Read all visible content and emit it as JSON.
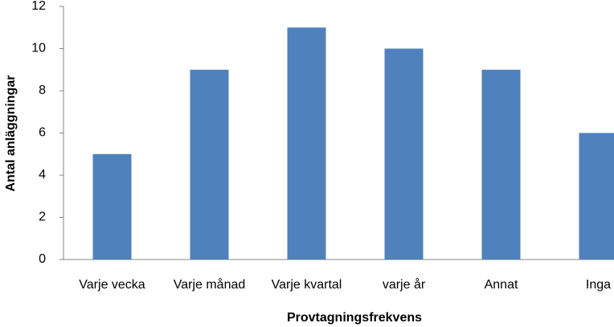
{
  "chart_data": {
    "type": "bar",
    "x_label": "Provtagningsfrekvens",
    "y_label": "Antal anläggningar",
    "categories": [
      "Varje vecka",
      "Varje månad",
      "Varje kvartal",
      "varje år",
      "Annat",
      "Inga"
    ],
    "values": [
      5,
      9,
      11,
      10,
      9,
      6
    ],
    "color": "#4f81bd",
    "ylim": [
      0,
      12
    ],
    "yticks": [
      0,
      2,
      4,
      6,
      8,
      10,
      12
    ],
    "grid": false
  }
}
